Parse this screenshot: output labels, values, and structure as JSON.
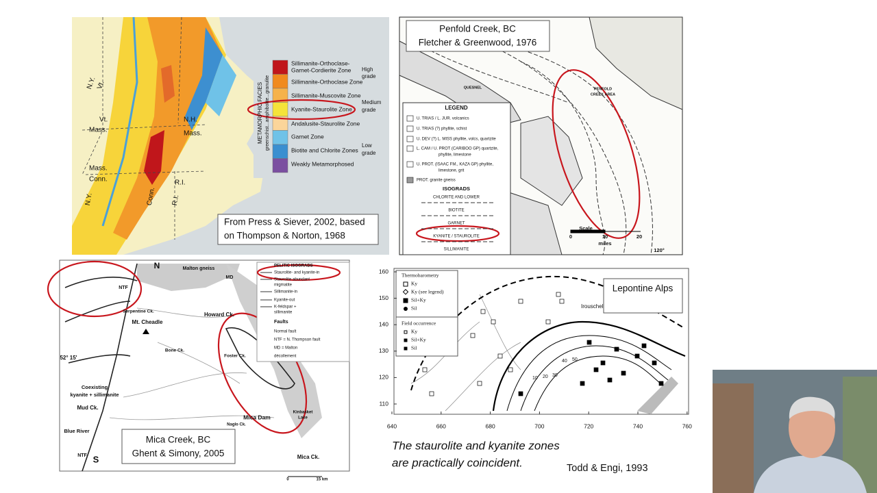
{
  "new_england": {
    "caption": [
      "From Press & Siever, 2002, based",
      "on Thompson & Norton, 1968"
    ],
    "legend_title": "METAMORPHIC FACIES",
    "legend_subtitle": "greenschist...amphibolite...granulite",
    "zones": [
      "Sillimanite-Orthoclase-",
      "Garnet-Cordierite Zone",
      "Sillimanite-Orthoclase Zone",
      "Sillimanite-Muscovite Zone",
      "Kyanite-Staurolite Zone",
      "Andalusite-Staurolite Zone",
      "Garnet Zone",
      "Biotite and Chlorite Zones",
      "Weakly Metamorphosed"
    ],
    "grades": [
      "High",
      "grade",
      "Medium",
      "grade",
      "Low",
      "grade"
    ],
    "labels": [
      "Vt.",
      "N.Y.",
      "Vt.",
      "N.H.",
      "Mass.",
      "Mass.",
      "Mass.",
      "Conn.",
      "R.I.",
      "Conn.",
      "R.I.",
      "N.Y."
    ]
  },
  "penfold": {
    "caption": [
      "Penfold Creek, BC",
      "Fletcher & Greenwood, 1976"
    ],
    "legend_title": "LEGEND",
    "units": [
      "U. TRIAS / L. JUR.  volcanics",
      "U. TRIAS (?)  phyllite, schist",
      "U. DEV (?)  L. MISS  phyllite, volcs, quartzite",
      "L. CAM / U. PROT (CARIBOO GP) quartzite,",
      "phyllite, limestone",
      "U. PROT. (ISAAC FM., KAZA GP) phyllite,",
      "limestone, grit",
      "PROT.  granite gneiss"
    ],
    "isograds_title": "ISOGRADS",
    "isograds": [
      "CHLORITE AND LOWER",
      "BIOTITE",
      "GARNET",
      "KYANITE / STAUROLITE",
      "SILLIMANITE"
    ],
    "labels": [
      "PENFOLD",
      "CREEK AREA",
      "QUESNEL",
      "Scale",
      "0",
      "10",
      "20",
      "miles",
      "120°"
    ]
  },
  "mica": {
    "caption": [
      "Mica Creek, BC",
      "Ghent & Simony, 2005"
    ],
    "legend_title": "PELITIC ISOGRADS",
    "isograds": [
      "Staurolite- and kyanite-in",
      "Staurolite abundant",
      "migmatite",
      "Sillimanite-in",
      "Kyanite-out",
      "K-feldspar +",
      "sillimanite"
    ],
    "faults_title": "Faults",
    "faults": [
      "Normal fault",
      "NTF = N. Thompson fault",
      "MD = Malton",
      "décollement"
    ],
    "labels": [
      "N",
      "Malton gneiss",
      "MD",
      "NTF",
      "Serpentine Ck.",
      "Mt. Cheadle",
      "Howard Ck.",
      "Bone Ck.",
      "Foster Ck.",
      "52° 15'",
      "Coexisting",
      "kyanite + sillimanite",
      "Mud Ck.",
      "Blue River",
      "NTF",
      "S",
      "Mica Dam",
      "Naglo Ck.",
      "Kinbasket",
      "Lake",
      "Mica Ck.",
      "0",
      "15 km"
    ]
  },
  "lepontine": {
    "caption": "Lepontine Alps",
    "legend1_title": "Thermobarometry",
    "legend1": [
      "Ky",
      "Ky (see legend)",
      "Sil+Ky",
      "Sil"
    ],
    "legend2_title": "Field occurrence",
    "legend2": [
      "Ky",
      "Sil+Ky",
      "Sil"
    ],
    "contours": [
      "10",
      "20",
      "30",
      "40",
      "50"
    ],
    "place": "Irouschel",
    "xticks": [
      640,
      660,
      680,
      700,
      720,
      740,
      760
    ],
    "yticks": [
      110,
      120,
      130,
      140,
      150,
      160
    ]
  },
  "footnote": {
    "text": [
      "The staurolite and kyanite zones",
      "are practically coincident."
    ],
    "credit": "Todd & Engi, 1993"
  }
}
